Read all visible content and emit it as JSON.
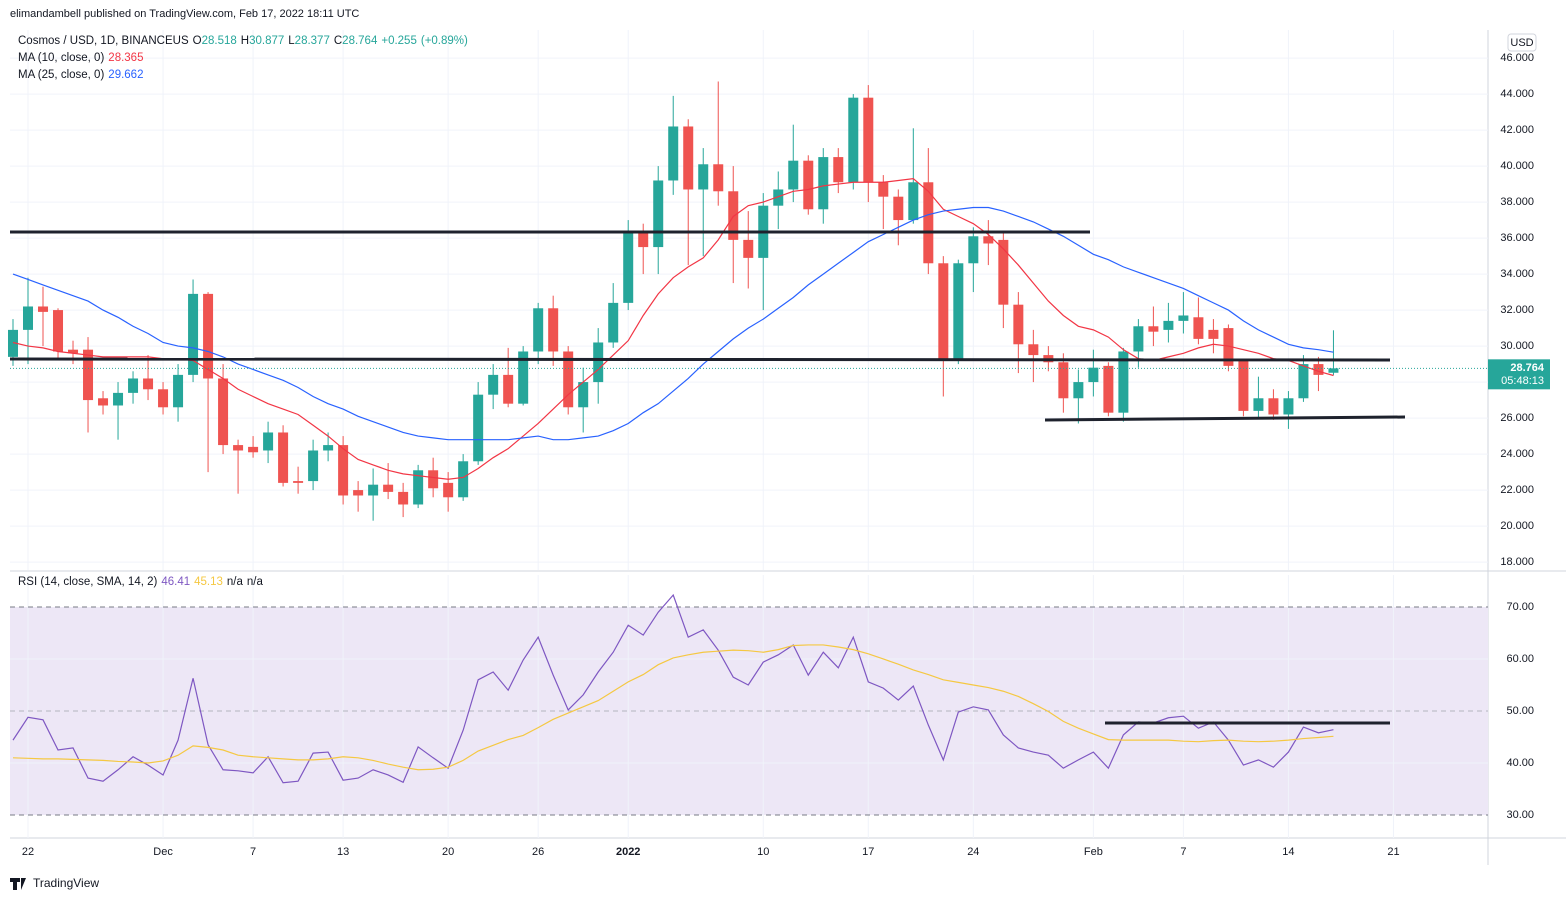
{
  "header": {
    "published": "elimandambell published on TradingView.com, Feb 17, 2022 18:11 UTC",
    "footer_brand": "TradingView"
  },
  "chart_data": [
    {
      "type": "candlestick",
      "title": "Cosmos / USD, 1D, BINANCEUS",
      "currency": "USD",
      "countdown": "05:48:13",
      "ohlc_letters": [
        "O",
        "H",
        "L",
        "C"
      ],
      "change": 0.255,
      "change_label": "+0.255",
      "change_pct": 0.89,
      "change_pct_label": "(+0.89%)",
      "up_color": "#26a69a",
      "down_color": "#ef5350",
      "open": [
        29.4,
        30.9,
        32.2,
        32.0,
        29.8,
        29.8,
        27.1,
        26.7,
        27.4,
        28.2,
        27.6,
        26.6,
        28.4,
        32.9,
        28.2,
        24.5,
        24.4,
        24.2,
        25.2,
        22.5,
        22.5,
        24.2,
        24.5,
        22.0,
        21.7,
        22.3,
        21.9,
        21.2,
        23.1,
        22.4,
        21.6,
        23.6,
        27.3,
        28.4,
        26.8,
        29.7,
        32.1,
        29.7,
        26.6,
        28.0,
        30.2,
        32.4,
        36.3,
        35.5,
        39.2,
        42.2,
        38.7,
        40.1,
        38.6,
        35.9,
        34.9,
        37.8,
        38.7,
        40.3,
        37.6,
        40.5,
        39.1,
        43.8,
        39.1,
        38.3,
        37.0,
        39.1,
        34.6,
        29.2,
        34.6,
        36.1,
        35.9,
        32.3,
        30.1,
        29.5,
        29.1,
        27.1,
        28.0,
        28.9,
        26.3,
        29.7,
        31.1,
        30.9,
        31.4,
        31.6,
        30.9,
        31.0,
        29.2,
        26.4,
        27.1,
        26.2,
        27.1,
        29.0,
        28.518
      ],
      "high": [
        31.5,
        33.8,
        33.3,
        32.1,
        30.3,
        30.5,
        27.5,
        28.0,
        28.6,
        29.5,
        28.0,
        29.0,
        33.7,
        33.0,
        29.0,
        24.8,
        25.0,
        25.8,
        25.6,
        23.3,
        24.8,
        25.2,
        25.0,
        22.5,
        23.2,
        23.5,
        22.4,
        23.4,
        23.8,
        23.0,
        24.0,
        28.0,
        29.0,
        29.9,
        30.0,
        32.4,
        32.8,
        30.0,
        28.8,
        31.0,
        33.5,
        37.0,
        36.8,
        40.0,
        43.9,
        42.6,
        41.0,
        44.7,
        40.0,
        37.5,
        38.5,
        39.7,
        42.3,
        40.6,
        41.0,
        41.0,
        44.0,
        44.5,
        39.5,
        38.7,
        42.1,
        41.0,
        35.0,
        34.8,
        36.6,
        37.0,
        36.3,
        33.0,
        30.9,
        30.0,
        29.6,
        28.7,
        29.8,
        29.1,
        29.9,
        31.5,
        32.2,
        32.4,
        33.0,
        32.7,
        31.5,
        31.2,
        29.3,
        28.3,
        27.6,
        27.5,
        29.5,
        29.4,
        30.877
      ],
      "low": [
        28.9,
        29.0,
        30.0,
        29.2,
        29.0,
        25.2,
        26.2,
        24.8,
        26.8,
        27.0,
        26.2,
        25.8,
        28.0,
        23.0,
        24.0,
        21.8,
        23.8,
        23.5,
        22.2,
        21.8,
        22.0,
        23.6,
        21.2,
        20.8,
        20.3,
        21.5,
        20.5,
        21.0,
        21.6,
        20.8,
        21.4,
        23.4,
        26.5,
        26.6,
        26.7,
        29.0,
        28.9,
        26.2,
        25.2,
        26.8,
        29.9,
        32.0,
        34.0,
        34.0,
        38.4,
        34.5,
        35.0,
        37.8,
        33.5,
        33.2,
        32.0,
        36.5,
        38.0,
        37.3,
        36.8,
        38.5,
        38.7,
        38.0,
        36.5,
        35.6,
        36.8,
        34.0,
        27.2,
        29.0,
        33.0,
        34.5,
        31.0,
        28.5,
        28.0,
        28.6,
        26.3,
        25.7,
        27.2,
        26.1,
        25.8,
        28.8,
        30.0,
        30.2,
        30.7,
        30.1,
        29.6,
        28.6,
        26.1,
        26.0,
        25.9,
        25.4,
        26.9,
        27.5,
        28.377
      ],
      "close": [
        30.9,
        32.2,
        31.9,
        29.7,
        29.6,
        27.0,
        26.7,
        27.4,
        28.2,
        27.6,
        26.6,
        28.4,
        32.9,
        28.2,
        24.5,
        24.2,
        24.1,
        25.2,
        22.4,
        22.4,
        24.2,
        24.5,
        21.7,
        21.7,
        22.3,
        21.9,
        21.2,
        23.1,
        22.1,
        21.6,
        23.6,
        27.3,
        28.4,
        26.8,
        29.7,
        32.1,
        29.7,
        26.6,
        28.0,
        30.2,
        32.4,
        36.3,
        35.5,
        39.2,
        42.2,
        38.7,
        40.1,
        38.6,
        35.9,
        34.9,
        37.8,
        38.7,
        40.3,
        37.6,
        40.5,
        39.1,
        43.8,
        39.1,
        38.3,
        37.0,
        39.1,
        34.6,
        29.2,
        34.6,
        36.1,
        35.7,
        32.3,
        30.1,
        29.5,
        29.1,
        27.1,
        28.0,
        28.8,
        26.3,
        29.7,
        31.1,
        30.8,
        31.4,
        31.7,
        30.4,
        30.4,
        28.9,
        26.4,
        27.1,
        26.2,
        27.1,
        29.0,
        28.4,
        28.764
      ],
      "series": [
        {
          "name": "MA (10, close, 0)",
          "color": "#f23645",
          "values": [
            30.2,
            30.0,
            29.9,
            29.7,
            29.6,
            29.5,
            29.4,
            29.4,
            29.4,
            29.4,
            29.3,
            29.3,
            29.2,
            28.7,
            28.2,
            27.6,
            27.2,
            26.8,
            26.5,
            26.2,
            25.6,
            25.0,
            24.3,
            23.7,
            23.4,
            23.1,
            22.9,
            22.8,
            22.7,
            22.6,
            22.7,
            23.2,
            23.8,
            24.3,
            25.0,
            25.7,
            26.5,
            27.3,
            28.0,
            28.7,
            29.5,
            30.3,
            31.7,
            32.9,
            33.8,
            34.4,
            34.9,
            35.9,
            37.2,
            37.8,
            38.0,
            38.3,
            38.6,
            38.7,
            38.9,
            39.0,
            39.1,
            39.1,
            39.1,
            39.2,
            39.3,
            38.6,
            37.6,
            37.2,
            36.8,
            36.2,
            35.4,
            34.5,
            33.5,
            32.5,
            31.7,
            31.1,
            30.9,
            30.5,
            29.8,
            29.3,
            29.2,
            29.4,
            29.6,
            29.9,
            30.1,
            30.0,
            29.8,
            29.6,
            29.3,
            29.2,
            28.9,
            28.6,
            28.365
          ]
        },
        {
          "name": "MA (25, close, 0)",
          "color": "#2962ff",
          "values": [
            34.0,
            33.7,
            33.4,
            33.1,
            32.8,
            32.5,
            32.0,
            31.6,
            31.1,
            30.7,
            30.2,
            30.0,
            29.9,
            29.7,
            29.4,
            29.0,
            28.7,
            28.4,
            28.1,
            27.7,
            27.2,
            26.8,
            26.5,
            26.1,
            25.8,
            25.5,
            25.2,
            25.0,
            24.9,
            24.8,
            24.8,
            24.8,
            24.8,
            24.8,
            24.9,
            25.0,
            24.8,
            24.8,
            24.9,
            25.0,
            25.3,
            25.7,
            26.3,
            26.8,
            27.5,
            28.2,
            29.0,
            29.7,
            30.4,
            31.0,
            31.5,
            32.1,
            32.7,
            33.4,
            34.0,
            34.6,
            35.2,
            35.8,
            36.2,
            36.6,
            37.0,
            37.3,
            37.5,
            37.6,
            37.7,
            37.7,
            37.5,
            37.2,
            36.9,
            36.5,
            36.1,
            35.6,
            35.1,
            34.8,
            34.4,
            34.1,
            33.8,
            33.5,
            33.2,
            32.8,
            32.4,
            32.0,
            31.4,
            30.9,
            30.5,
            30.1,
            29.9,
            29.8,
            29.662
          ]
        }
      ],
      "xlim": [
        -0.2,
        98.3
      ],
      "xticks": [
        {
          "value": 1,
          "label": "22"
        },
        {
          "value": 10,
          "label": "Dec"
        },
        {
          "value": 16,
          "label": "7"
        },
        {
          "value": 22,
          "label": "13"
        },
        {
          "value": 29,
          "label": "20"
        },
        {
          "value": 35,
          "label": "26"
        },
        {
          "value": 41,
          "label": "2022"
        },
        {
          "value": 50,
          "label": "10"
        },
        {
          "value": 57,
          "label": "17"
        },
        {
          "value": 64,
          "label": "24"
        },
        {
          "value": 72,
          "label": "Feb"
        },
        {
          "value": 78,
          "label": "7"
        },
        {
          "value": 85,
          "label": "14"
        },
        {
          "value": 92,
          "label": "21"
        }
      ],
      "ylim": [
        17.56,
        47.56
      ],
      "yticks": [
        {
          "value": 18,
          "label": "18.000"
        },
        {
          "value": 20,
          "label": "20.000"
        },
        {
          "value": 22,
          "label": "22.000"
        },
        {
          "value": 24,
          "label": "24.000"
        },
        {
          "value": 26,
          "label": "26.000"
        },
        {
          "value": 28,
          "label": "28.000"
        },
        {
          "value": 30,
          "label": "30.000"
        },
        {
          "value": 32,
          "label": "32.000"
        },
        {
          "value": 34,
          "label": "34.000"
        },
        {
          "value": 36,
          "label": "36.000"
        },
        {
          "value": 38,
          "label": "38.000"
        },
        {
          "value": 40,
          "label": "40.000"
        },
        {
          "value": 42,
          "label": "42.000"
        },
        {
          "value": 44,
          "label": "44.000"
        },
        {
          "value": 46,
          "label": "46.000"
        }
      ],
      "grid": true
    },
    {
      "type": "line",
      "title": "RSI (14, close, SMA, 14, 2)",
      "extra_values": [
        "n/a",
        "n/a"
      ],
      "series": [
        {
          "name": "RSI",
          "color": "#7e57c2",
          "values": [
            44.4,
            48.8,
            48.3,
            42.5,
            42.9,
            37.1,
            36.5,
            38.7,
            41.2,
            39.6,
            37.7,
            44.4,
            56.3,
            43.5,
            38.7,
            38.5,
            38.1,
            41.2,
            36.2,
            36.5,
            41.9,
            42.1,
            36.7,
            37.1,
            38.7,
            37.7,
            36.3,
            43.1,
            41.0,
            39.0,
            46.3,
            56.0,
            57.5,
            54.0,
            59.8,
            64.2,
            56.9,
            50.2,
            53.1,
            57.5,
            61.3,
            66.5,
            64.6,
            69.0,
            72.3,
            64.2,
            65.6,
            61.7,
            56.5,
            55.0,
            59.4,
            60.8,
            62.7,
            56.9,
            61.3,
            58.3,
            64.2,
            55.6,
            54.4,
            52.1,
            54.8,
            47.3,
            40.6,
            49.8,
            50.8,
            50.2,
            45.4,
            42.9,
            42.1,
            41.5,
            39.0,
            40.6,
            42.1,
            39.0,
            45.4,
            47.9,
            47.7,
            48.7,
            49.0,
            46.7,
            47.9,
            44.4,
            39.6,
            40.6,
            39.2,
            42.1,
            46.9,
            45.8,
            46.41
          ]
        },
        {
          "name": "SMA",
          "color": "#f5c842",
          "values": [
            41.0,
            40.9,
            40.8,
            40.8,
            40.7,
            40.6,
            40.5,
            40.3,
            40.2,
            40.0,
            40.4,
            41.5,
            43.3,
            43.0,
            42.5,
            41.5,
            41.2,
            41.0,
            40.8,
            40.6,
            40.6,
            40.8,
            41.2,
            41.0,
            40.5,
            39.8,
            39.2,
            38.7,
            38.8,
            39.2,
            40.5,
            42.3,
            43.4,
            44.5,
            45.3,
            46.8,
            48.4,
            49.6,
            50.8,
            52.0,
            53.8,
            55.6,
            57.0,
            58.9,
            60.2,
            60.8,
            61.3,
            61.5,
            61.7,
            61.6,
            61.3,
            61.8,
            62.6,
            62.7,
            62.7,
            62.3,
            61.8,
            61.0,
            60.0,
            59.0,
            57.9,
            57.0,
            56.0,
            55.5,
            55.0,
            54.5,
            53.8,
            52.8,
            51.4,
            49.9,
            48.0,
            46.7,
            45.6,
            44.5,
            44.4,
            44.4,
            44.4,
            44.4,
            44.2,
            44.1,
            44.3,
            44.4,
            44.2,
            44.1,
            44.2,
            44.4,
            44.7,
            44.9,
            45.13
          ]
        }
      ],
      "ylim": [
        25.58,
        76.15
      ],
      "yticks": [
        {
          "value": 30,
          "label": "30.00"
        },
        {
          "value": 40,
          "label": "40.00"
        },
        {
          "value": 50,
          "label": "50.00"
        },
        {
          "value": 60,
          "label": "60.00"
        },
        {
          "value": 70,
          "label": "70.00"
        }
      ],
      "band_color": "#ede7f6"
    }
  ]
}
